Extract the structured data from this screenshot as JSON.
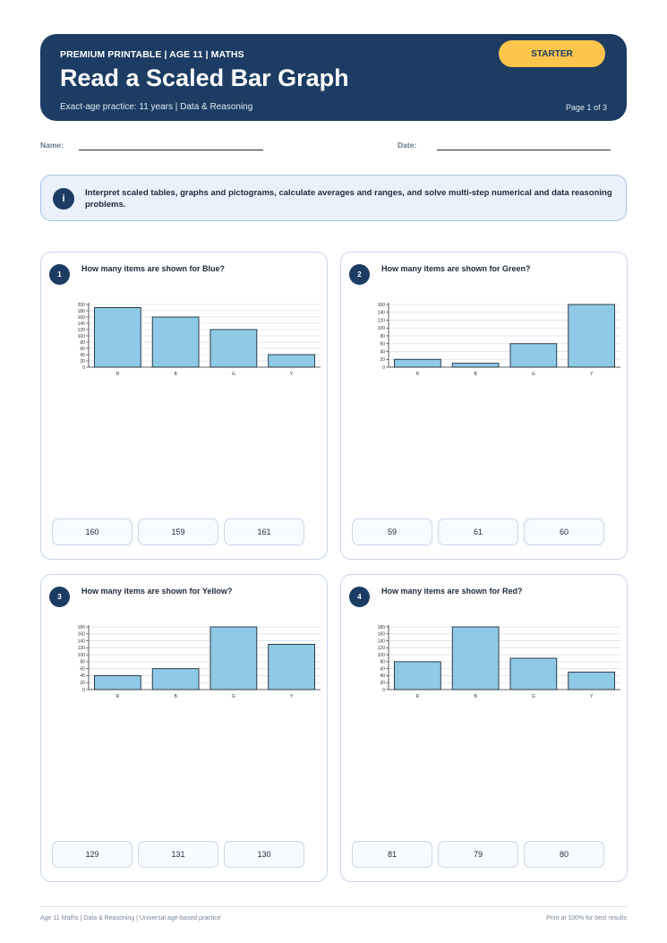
{
  "header": {
    "kicker": "PREMIUM PRINTABLE | AGE 11 | MATHS",
    "title": "Read a Scaled Bar Graph",
    "subtitle": "Exact-age practice: 11 years | Data & Reasoning",
    "page": "Page 1 of 3",
    "badge": "STARTER"
  },
  "fields": {
    "name_label": "Name:",
    "date_label": "Date:"
  },
  "info": {
    "icon": "info-icon",
    "icon_glyph": "i",
    "text": "Interpret scaled tables, graphs and pictograms, calculate averages and ranges, and solve multi-step numerical and data reasoning problems."
  },
  "questions": [
    {
      "number": "1",
      "text": "How many items are shown for Blue?",
      "choices": [
        "160",
        "159",
        "161"
      ]
    },
    {
      "number": "2",
      "text": "How many items are shown for Green?",
      "choices": [
        "59",
        "61",
        "60"
      ]
    },
    {
      "number": "3",
      "text": "How many items are shown for Yellow?",
      "choices": [
        "129",
        "131",
        "130"
      ]
    },
    {
      "number": "4",
      "text": "How many items are shown for Red?",
      "choices": [
        "81",
        "79",
        "80"
      ]
    }
  ],
  "chart_data": [
    {
      "type": "bar",
      "categories": [
        "R",
        "B",
        "G",
        "Y"
      ],
      "values": [
        190,
        160,
        120,
        40
      ],
      "ylim": [
        0,
        200
      ],
      "yticks": [
        0,
        20,
        40,
        60,
        80,
        100,
        120,
        140,
        160,
        180,
        200
      ],
      "grid": true,
      "title": "",
      "xlabel": "",
      "ylabel": "",
      "bar_color": "#8ecae6"
    },
    {
      "type": "bar",
      "categories": [
        "R",
        "B",
        "G",
        "Y"
      ],
      "values": [
        20,
        10,
        60,
        160
      ],
      "ylim": [
        0,
        160
      ],
      "yticks": [
        0,
        20,
        40,
        60,
        80,
        100,
        120,
        140,
        160
      ],
      "grid": true,
      "title": "",
      "xlabel": "",
      "ylabel": "",
      "bar_color": "#8ecae6"
    },
    {
      "type": "bar",
      "categories": [
        "R",
        "B",
        "G",
        "Y"
      ],
      "values": [
        40,
        60,
        180,
        130
      ],
      "ylim": [
        0,
        180
      ],
      "yticks": [
        0,
        20,
        40,
        60,
        80,
        100,
        120,
        140,
        160,
        180
      ],
      "grid": true,
      "title": "",
      "xlabel": "",
      "ylabel": "",
      "bar_color": "#8ecae6"
    },
    {
      "type": "bar",
      "categories": [
        "R",
        "B",
        "G",
        "Y"
      ],
      "values": [
        80,
        180,
        90,
        50
      ],
      "ylim": [
        0,
        180
      ],
      "yticks": [
        0,
        20,
        40,
        60,
        80,
        100,
        120,
        140,
        160,
        180
      ],
      "grid": true,
      "title": "",
      "xlabel": "",
      "ylabel": "",
      "bar_color": "#8ecae6"
    }
  ],
  "footer": {
    "left": "Age 11 Maths | Data & Reasoning | Universal age-based practice",
    "right": "Print at 100% for best results"
  },
  "colors": {
    "navy": "#1c3c63",
    "accent": "#fcc64c",
    "bar": "#8ecae6"
  }
}
